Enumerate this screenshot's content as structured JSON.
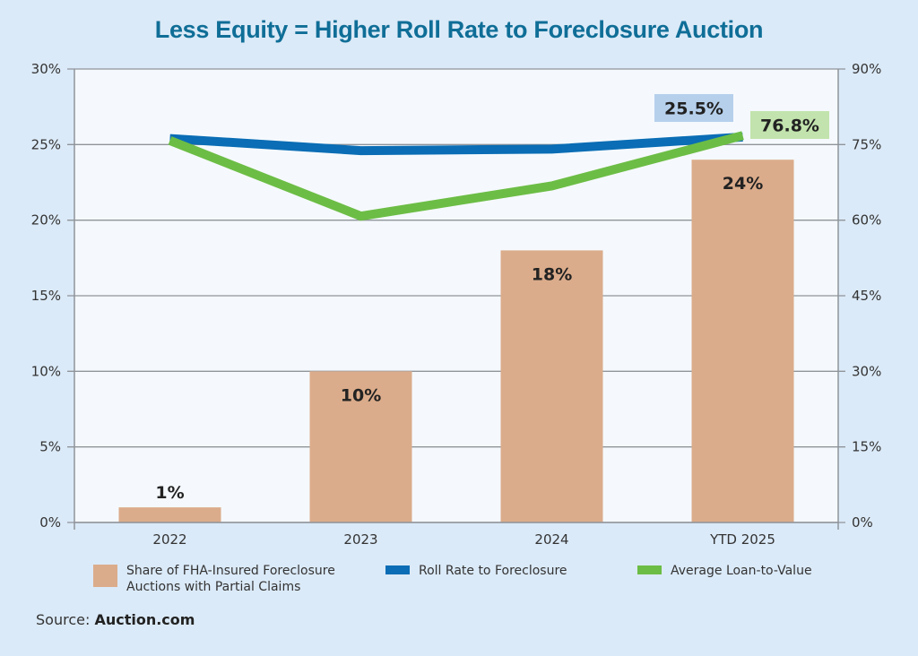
{
  "chart_data": {
    "type": "bar",
    "title": "Less Equity = Higher Roll Rate to Foreclosure Auction",
    "categories": [
      "2022",
      "2023",
      "2024",
      "YTD 2025"
    ],
    "xlabel": "",
    "ylabel": "",
    "y_left": {
      "range": [
        0,
        30
      ],
      "ticks": [
        0,
        5,
        10,
        15,
        20,
        25,
        30
      ],
      "tick_labels": [
        "0%",
        "5%",
        "10%",
        "15%",
        "20%",
        "25%",
        "30%"
      ]
    },
    "y_right": {
      "range": [
        0,
        90
      ],
      "ticks": [
        0,
        15,
        30,
        45,
        60,
        75,
        90
      ],
      "tick_labels": [
        "0%",
        "15%",
        "30%",
        "45%",
        "60%",
        "75%",
        "90%"
      ]
    },
    "grid": true,
    "legend_position": "bottom",
    "series": [
      {
        "name": "Share of FHA-Insured Foreclosure Auctions with Partial Claims",
        "type": "bar",
        "axis": "left",
        "color": "#dbac8b",
        "values": [
          1,
          10,
          18,
          24
        ],
        "data_labels": [
          "1%",
          "10%",
          "18%",
          "24%"
        ]
      },
      {
        "name": "Roll Rate to Foreclosure",
        "type": "line",
        "axis": "left",
        "color": "#0a6db5",
        "values": [
          25.4,
          24.6,
          24.7,
          25.5
        ],
        "callout": {
          "index": 3,
          "text": "25.5%",
          "bg": "#b6d0ec"
        }
      },
      {
        "name": "Average Loan-to-Value",
        "type": "line",
        "axis": "right",
        "color": "#6cbd45",
        "values": [
          75.8,
          60.8,
          66.8,
          76.8
        ],
        "callout": {
          "index": 3,
          "text": "76.8%",
          "bg": "#c2e3ad"
        }
      }
    ]
  },
  "legend": {
    "items": [
      {
        "label_line1": "Share of FHA-Insured Foreclosure",
        "label_line2": "Auctions with Partial Claims"
      },
      {
        "label_line1": "Roll Rate to Foreclosure",
        "label_line2": ""
      },
      {
        "label_line1": "Average Loan-to-Value",
        "label_line2": ""
      }
    ]
  },
  "source": {
    "prefix": "Source: ",
    "name": "Auction.com"
  },
  "colors": {
    "background": "#dbeaf8",
    "plot_background": "#f5f9fd",
    "title": "#0f6e97",
    "grid": "#8f949a"
  }
}
